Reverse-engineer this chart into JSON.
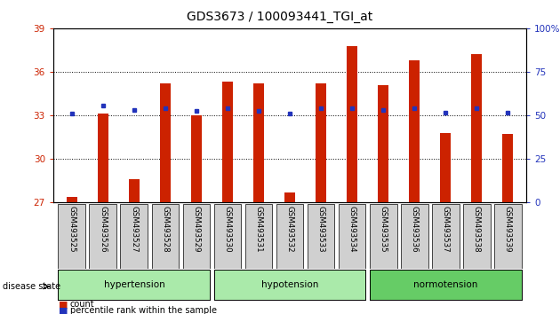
{
  "title": "GDS3673 / 100093441_TGI_at",
  "samples": [
    "GSM493525",
    "GSM493526",
    "GSM493527",
    "GSM493528",
    "GSM493529",
    "GSM493530",
    "GSM493531",
    "GSM493532",
    "GSM493533",
    "GSM493534",
    "GSM493535",
    "GSM493536",
    "GSM493537",
    "GSM493538",
    "GSM493539"
  ],
  "red_values": [
    27.4,
    33.1,
    28.6,
    35.2,
    33.0,
    35.3,
    35.2,
    27.7,
    35.2,
    37.8,
    35.1,
    36.8,
    31.8,
    37.2,
    31.7
  ],
  "blue_values": [
    33.1,
    33.7,
    33.4,
    33.5,
    33.3,
    33.5,
    33.3,
    33.1,
    33.5,
    33.5,
    33.4,
    33.5,
    33.2,
    33.5,
    33.2
  ],
  "groups": [
    {
      "name": "hypertension",
      "start": 0,
      "end": 4,
      "color": "#aaeaaa"
    },
    {
      "name": "hypotension",
      "start": 5,
      "end": 9,
      "color": "#aaeaaa"
    },
    {
      "name": "normotension",
      "start": 10,
      "end": 14,
      "color": "#66cc66"
    }
  ],
  "ylim": [
    27,
    39
  ],
  "yticks": [
    27,
    30,
    33,
    36,
    39
  ],
  "right_yticks": [
    0,
    25,
    50,
    75,
    100
  ],
  "right_ylabels": [
    "0",
    "25",
    "50",
    "75",
    "100%"
  ],
  "bar_color": "#cc2200",
  "blue_color": "#2233bb",
  "bar_width": 0.35,
  "sample_bg_color": "#d0d0d0",
  "title_fontsize": 10,
  "tick_fontsize": 7.5,
  "label_fontsize": 7.5
}
